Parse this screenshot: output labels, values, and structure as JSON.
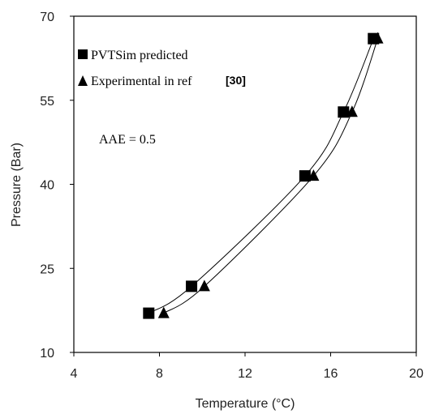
{
  "chart_data": {
    "type": "scatter",
    "xlabel": "Temperature (°C)",
    "ylabel": "Pressure (Bar)",
    "xlim": [
      4,
      20
    ],
    "ylim": [
      10,
      70
    ],
    "xticks": [
      "4",
      "8",
      "12",
      "16",
      "20"
    ],
    "yticks": [
      "10",
      "25",
      "40",
      "55",
      "70"
    ],
    "grid": false,
    "legend_position": "top-left",
    "legend": {
      "entries": [
        "PVTSim predicted",
        "Experimental in ref"
      ],
      "ref_label": "[30]"
    },
    "annotation": "AAE = 0.5",
    "series": [
      {
        "name": "PVTSim predicted",
        "marker": "square",
        "color": "#000000",
        "x": [
          7.5,
          9.5,
          14.8,
          16.6,
          18.0
        ],
        "y": [
          17.0,
          21.8,
          41.5,
          52.9,
          66.0
        ]
      },
      {
        "name": "Experimental in ref [30]",
        "marker": "triangle",
        "color": "#000000",
        "x": [
          8.2,
          10.1,
          15.2,
          17.0,
          18.2
        ],
        "y": [
          17.0,
          21.8,
          41.5,
          52.9,
          66.0
        ]
      }
    ],
    "curves": [
      {
        "x": [
          7.5,
          9.5,
          14.8,
          16.6,
          18.0
        ],
        "y": [
          17.0,
          21.8,
          41.5,
          52.9,
          66.0
        ]
      },
      {
        "x": [
          8.2,
          10.1,
          15.2,
          17.0,
          18.2
        ],
        "y": [
          17.0,
          21.8,
          41.5,
          52.9,
          66.0
        ]
      }
    ]
  }
}
